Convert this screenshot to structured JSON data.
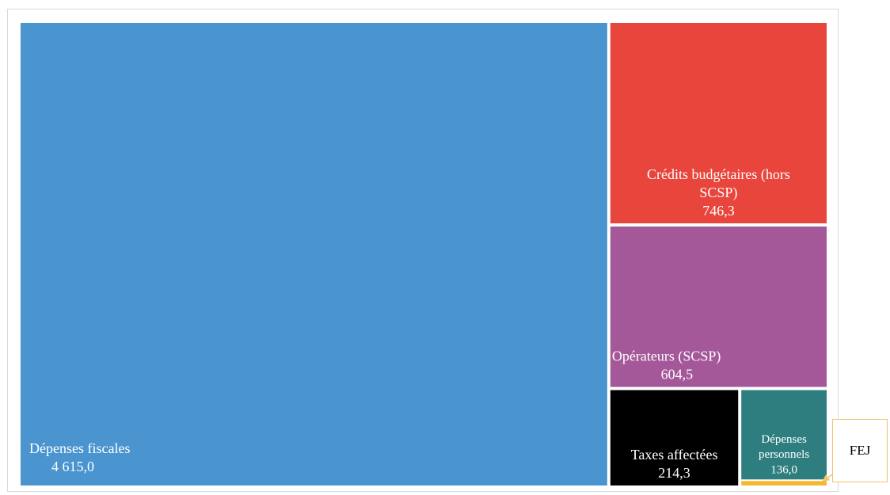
{
  "chart_data": {
    "type": "treemap",
    "title": "",
    "series": [
      {
        "name": "Dépenses fiscales",
        "label_lines": [
          "Dépenses fiscales"
        ],
        "value_label": "4 615,0",
        "value": 4615.0,
        "color": "#4a95cf"
      },
      {
        "name": "Crédits budgétaires (hors SCSP)",
        "label_lines": [
          "Crédits budgétaires (hors",
          "SCSP)"
        ],
        "value_label": "746,3",
        "value": 746.3,
        "color": "#e8453c"
      },
      {
        "name": "Opérateurs (SCSP)",
        "label_lines": [
          "Opérateurs (SCSP)"
        ],
        "value_label": "604,5",
        "value": 604.5,
        "color": "#a4589a"
      },
      {
        "name": "Taxes affectées",
        "label_lines": [
          "Taxes affectées"
        ],
        "value_label": "214,3",
        "value": 214.3,
        "color": "#000000"
      },
      {
        "name": "Dépenses personnels",
        "label_lines": [
          "Dépenses",
          "personnels"
        ],
        "value_label": "136,0",
        "value": 136.0,
        "color": "#2e7e7f"
      },
      {
        "name": "FEJ",
        "value": 8,
        "color": "#f5b731"
      }
    ],
    "callout": {
      "label": "FEJ",
      "target": "FEJ",
      "line_color": "#f2c46d"
    }
  }
}
